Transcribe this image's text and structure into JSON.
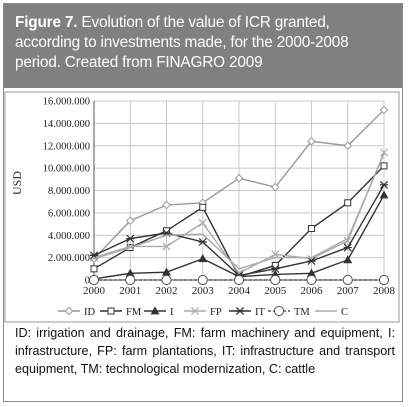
{
  "figure": {
    "label": "Figure 7.",
    "title": "Evolution of the value of ICR granted, according to investments made, for the 2000-2008 period. Created from FINAGRO 2009",
    "caption": "ID: irrigation and drainage, FM: farm machinery and equipment, I: infrastructure, FP: farm plantations, IT: infrastructure and transport equipment, TM: technological modernization, C: cattle"
  },
  "chart_data": {
    "type": "line",
    "title": "",
    "xlabel": "",
    "ylabel": "USD",
    "x": [
      "2000",
      "2001",
      "2002",
      "2003",
      "2004",
      "2005",
      "2006",
      "2007",
      "2008"
    ],
    "yticks": [
      "0",
      "2.000.000",
      "4.000.000",
      "6.000.000",
      "8.000.000",
      "10.000.000",
      "12.000.000",
      "14.000.000",
      "16.000.000"
    ],
    "ylim": [
      0,
      16000000
    ],
    "grid": true,
    "legend_position": "bottom",
    "series": [
      {
        "name": "ID",
        "marker": "diamond",
        "color": "#999999",
        "values": [
          1900000,
          5300000,
          6700000,
          6900000,
          9100000,
          8300000,
          12400000,
          12000000,
          15200000
        ]
      },
      {
        "name": "FM",
        "marker": "square",
        "color": "#333333",
        "values": [
          1000000,
          2900000,
          4400000,
          6500000,
          300000,
          1300000,
          4600000,
          6900000,
          10200000
        ]
      },
      {
        "name": "I",
        "marker": "triangle",
        "color": "#333333",
        "values": [
          100000,
          600000,
          700000,
          1900000,
          300000,
          500000,
          600000,
          1800000,
          7600000
        ]
      },
      {
        "name": "FP",
        "marker": "x",
        "color": "#aaaaaa",
        "values": [
          2000000,
          3000000,
          3000000,
          5100000,
          600000,
          2300000,
          1900000,
          3500000,
          11400000
        ]
      },
      {
        "name": "IT",
        "marker": "star",
        "color": "#333333",
        "values": [
          2200000,
          3700000,
          4200000,
          3400000,
          400000,
          1000000,
          1700000,
          2900000,
          8500000
        ]
      },
      {
        "name": "TM",
        "marker": "circle",
        "color": "#555555",
        "dashed": true,
        "values": [
          0,
          0,
          0,
          0,
          0,
          0,
          0,
          0,
          0
        ]
      },
      {
        "name": "C",
        "marker": "none",
        "color": "#aaaaaa",
        "values": [
          1900000,
          2900000,
          4000000,
          4100000,
          1000000,
          2000000,
          2000000,
          3700000,
          11300000
        ]
      }
    ]
  }
}
